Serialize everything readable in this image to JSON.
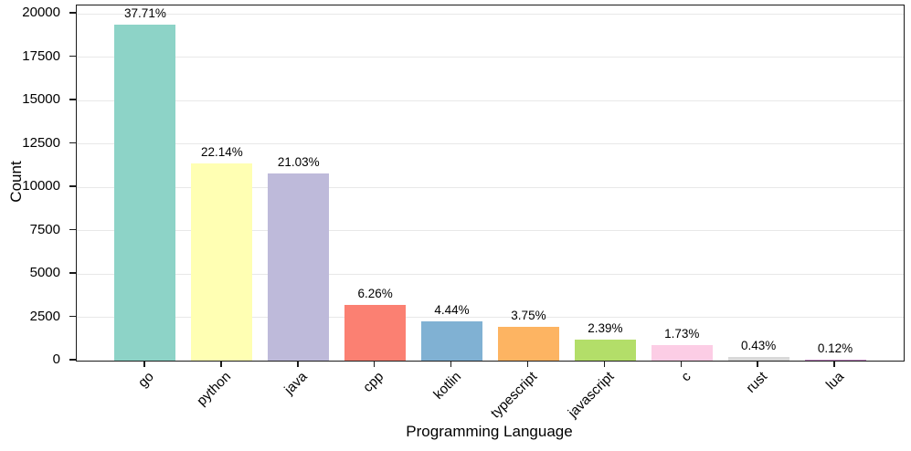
{
  "chart_data": {
    "type": "bar",
    "title": "",
    "xlabel": "Programming Language",
    "ylabel": "Count",
    "categories": [
      "go",
      "python",
      "java",
      "cpp",
      "kotlin",
      "typescript",
      "javascript",
      "c",
      "rust",
      "lua"
    ],
    "values": [
      19364,
      11369,
      10799,
      3215,
      2280,
      1926,
      1227,
      888,
      221,
      62
    ],
    "bar_labels": [
      "37.71%",
      "22.14%",
      "21.03%",
      "6.26%",
      "4.44%",
      "3.75%",
      "2.39%",
      "1.73%",
      "0.43%",
      "0.12%"
    ],
    "bar_colors": [
      "#8dd3c7",
      "#ffffb3",
      "#bebada",
      "#fb8072",
      "#80b1d3",
      "#fdb462",
      "#b3de69",
      "#fccde5",
      "#d9d9d9",
      "#bc80bd"
    ],
    "ytick_labels": [
      "0",
      "2500",
      "5000",
      "7500",
      "10000",
      "12500",
      "15000",
      "17500",
      "20000"
    ],
    "yticks": [
      0,
      2500,
      5000,
      7500,
      10000,
      12500,
      15000,
      17500,
      20000
    ],
    "ylim": [
      0,
      20474
    ],
    "grid": "horizontal",
    "gridline_color": "#e8e8e8",
    "axis_color": "#1a1a1a",
    "background": "#ffffff",
    "legend": "none"
  }
}
